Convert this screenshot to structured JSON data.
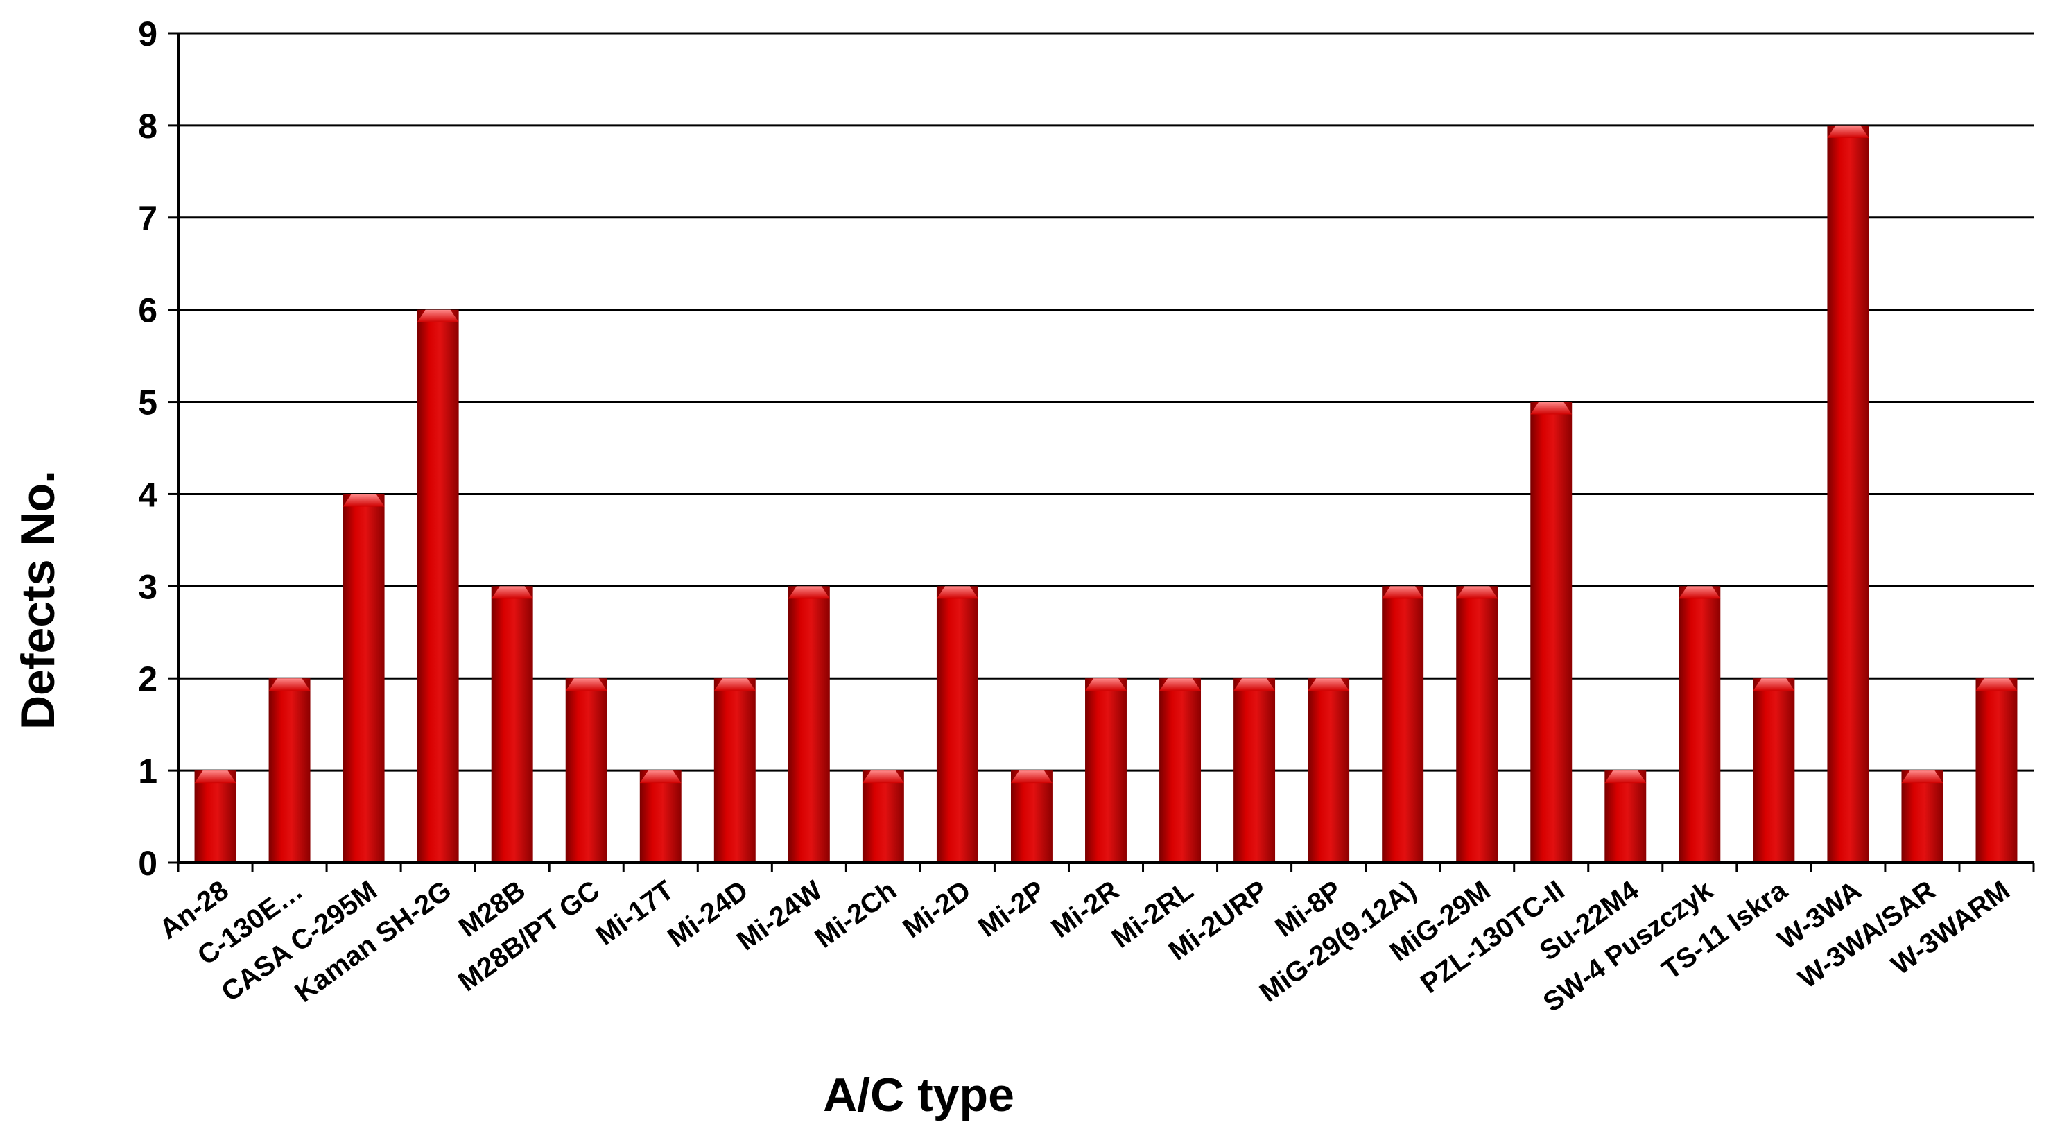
{
  "chart_data": {
    "type": "bar",
    "title": "",
    "xlabel": "A/C type",
    "ylabel": "Defects No.",
    "ylim": [
      0,
      9
    ],
    "yticks": [
      0,
      1,
      2,
      3,
      4,
      5,
      6,
      7,
      8,
      9
    ],
    "grid": true,
    "legend": "none",
    "bar_color": "#cc0000",
    "categories": [
      "An-28",
      "C-130E…",
      "CASA C-295M",
      "Kaman SH-2G",
      "M28B",
      "M28B/PT GC",
      "Mi-17T",
      "Mi-24D",
      "Mi-24W",
      "Mi-2Ch",
      "Mi-2D",
      "Mi-2P",
      "Mi-2R",
      "Mi-2RL",
      "Mi-2URP",
      "Mi-8P",
      "MiG-29(9.12A)",
      "MiG-29M",
      "PZL-130TC-II",
      "Su-22M4",
      "SW-4 Puszczyk",
      "TS-11 Iskra",
      "W-3WA",
      "W-3WA/SAR",
      "W-3WARM"
    ],
    "values": [
      1,
      2,
      4,
      6,
      3,
      2,
      1,
      2,
      3,
      1,
      3,
      1,
      2,
      2,
      2,
      2,
      3,
      3,
      5,
      1,
      3,
      2,
      8,
      1,
      2
    ]
  }
}
